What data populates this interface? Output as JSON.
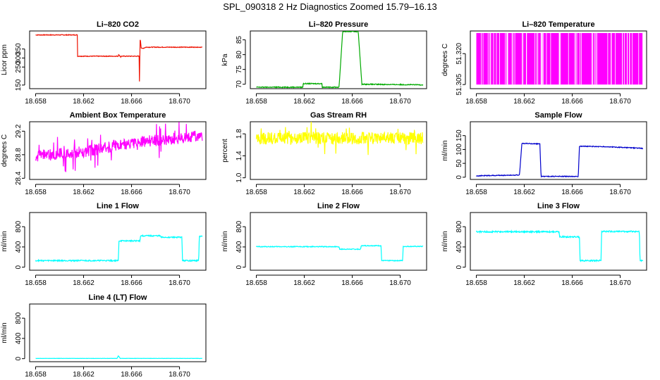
{
  "title": "SPL_090318  2 Hz Diagnostics Zoomed 15.79–16.13",
  "chart_data": [
    {
      "type": "line",
      "title": "Li–820 CO2",
      "ylabel": "Licor ppm",
      "color": "#ee1100",
      "xlim": [
        18.6575,
        18.6722
      ],
      "ylim": [
        130,
        450
      ],
      "xticks": [
        18.658,
        18.662,
        18.666,
        18.67
      ],
      "xtick_labels": [
        "18.658",
        "18.662",
        "18.666",
        "18.670"
      ],
      "yticks": [
        150,
        250,
        300,
        350
      ],
      "ytick_labels": [
        "150",
        "250",
        "300",
        "350"
      ],
      "series": [
        {
          "name": "CO2",
          "noise": 2,
          "x": [
            18.658,
            18.6615,
            18.6615,
            18.6649,
            18.6649,
            18.6651,
            18.6651,
            18.66665,
            18.66665,
            18.66672,
            18.6668,
            18.6669,
            18.6672,
            18.6719
          ],
          "y": [
            428,
            428,
            310,
            310,
            322,
            305,
            310,
            310,
            138,
            415,
            358,
            352,
            360,
            360
          ]
        }
      ]
    },
    {
      "type": "line",
      "title": "Li–820 Pressure",
      "ylabel": "kPa",
      "color": "#00aa00",
      "xlim": [
        18.6575,
        18.6722
      ],
      "ylim": [
        68.5,
        88
      ],
      "xticks": [
        18.658,
        18.662,
        18.666,
        18.67
      ],
      "xtick_labels": [
        "18.658",
        "18.662",
        "18.666",
        "18.670"
      ],
      "yticks": [
        70,
        75,
        80,
        85
      ],
      "ytick_labels": [
        "70",
        "75",
        "80",
        "85"
      ],
      "series": [
        {
          "name": "Pressure",
          "noise": 0.15,
          "x": [
            18.658,
            18.6619,
            18.6619,
            18.6635,
            18.6635,
            18.6649,
            18.6652,
            18.6665,
            18.6668,
            18.6719
          ],
          "y": [
            69.0,
            69.0,
            70.2,
            70.2,
            69.0,
            69.0,
            87.8,
            87.8,
            70.0,
            69.8
          ]
        }
      ]
    },
    {
      "type": "line",
      "title": "Li–820 Temperature",
      "ylabel": "degrees C",
      "color": "#ff00ff",
      "xlim": [
        18.6575,
        18.6722
      ],
      "ylim": [
        51.303,
        51.331
      ],
      "xticks": [
        18.658,
        18.662,
        18.666,
        18.67
      ],
      "xtick_labels": [
        "18.658",
        "18.662",
        "18.666",
        "18.670"
      ],
      "yticks": [
        51.305,
        51.32
      ],
      "ytick_labels": [
        "51.305",
        "51.320"
      ],
      "series": [
        {
          "name": "Li-820 Temperature",
          "x": [
            18.658,
            18.6719
          ],
          "y": [
            51.305,
            51.33
          ]
        }
      ]
    },
    {
      "type": "line",
      "title": "Ambient Box Temperature",
      "ylabel": "degrees C",
      "color": "#ff00ff",
      "xlim": [
        18.6575,
        18.6722
      ],
      "ylim": [
        28.38,
        29.36
      ],
      "xticks": [
        18.658,
        18.662,
        18.666,
        18.67
      ],
      "xtick_labels": [
        "18.658",
        "18.662",
        "18.666",
        "18.670"
      ],
      "yticks": [
        28.4,
        28.8,
        29.2
      ],
      "ytick_labels": [
        "28.4",
        "28.8",
        "29.2"
      ],
      "series": [
        {
          "name": "Ambient Box Temperature",
          "noise": 0.1,
          "x": [
            18.658,
            18.662,
            18.666,
            18.6719
          ],
          "y": [
            28.78,
            28.85,
            29.0,
            29.12
          ]
        }
      ]
    },
    {
      "type": "line",
      "title": "Gas Stream RH",
      "ylabel": "percent",
      "color": "#ffff00",
      "xlim": [
        18.6575,
        18.6722
      ],
      "ylim": [
        0.97,
        2.02
      ],
      "xticks": [
        18.658,
        18.662,
        18.666,
        18.67
      ],
      "xtick_labels": [
        "18.658",
        "18.662",
        "18.666",
        "18.670"
      ],
      "yticks": [
        1.0,
        1.4,
        1.8
      ],
      "ytick_labels": [
        "1.0",
        "1.4",
        "1.8"
      ],
      "series": [
        {
          "name": "Gas Stream RH",
          "noise": 0.11,
          "x": [
            18.658,
            18.6719
          ],
          "y": [
            1.72,
            1.72
          ]
        }
      ]
    },
    {
      "type": "line",
      "title": "Sample Flow",
      "ylabel": "ml/min",
      "color": "#0000cc",
      "xlim": [
        18.6575,
        18.6722
      ],
      "ylim": [
        -8,
        200
      ],
      "xticks": [
        18.658,
        18.662,
        18.666,
        18.67
      ],
      "xtick_labels": [
        "18.658",
        "18.662",
        "18.666",
        "18.670"
      ],
      "yticks": [
        0,
        50,
        100,
        150
      ],
      "ytick_labels": [
        "0",
        "50",
        "100",
        "150"
      ],
      "series": [
        {
          "name": "Sample Flow",
          "noise": 1.5,
          "x": [
            18.658,
            18.6616,
            18.6618,
            18.6633,
            18.6634,
            18.6665,
            18.6666,
            18.6687,
            18.6719
          ],
          "y": [
            5,
            8,
            122,
            120,
            3,
            3,
            112,
            110,
            104
          ]
        }
      ]
    },
    {
      "type": "line",
      "title": "Line 1 Flow",
      "ylabel": "ml/min",
      "color": "#00ffff",
      "xlim": [
        18.6575,
        18.6722
      ],
      "ylim": [
        -60,
        1080
      ],
      "xticks": [
        18.658,
        18.662,
        18.666,
        18.67
      ],
      "xtick_labels": [
        "18.658",
        "18.662",
        "18.666",
        "18.670"
      ],
      "yticks": [
        0,
        400,
        800
      ],
      "ytick_labels": [
        "0",
        "400",
        "800"
      ],
      "series": [
        {
          "name": "Line 1 Flow",
          "noise": 12,
          "x": [
            18.658,
            18.6649,
            18.66495,
            18.6667,
            18.66675,
            18.6684,
            18.66845,
            18.6702,
            18.67025,
            18.6716,
            18.67165,
            18.6719
          ],
          "y": [
            130,
            130,
            520,
            520,
            620,
            620,
            590,
            590,
            130,
            130,
            610,
            610
          ]
        }
      ]
    },
    {
      "type": "line",
      "title": "Line 2 Flow",
      "ylabel": "ml/min",
      "color": "#00ffff",
      "xlim": [
        18.6575,
        18.6722
      ],
      "ylim": [
        -60,
        1080
      ],
      "xticks": [
        18.658,
        18.662,
        18.666,
        18.67
      ],
      "xtick_labels": [
        "18.658",
        "18.662",
        "18.666",
        "18.670"
      ],
      "yticks": [
        0,
        400,
        800
      ],
      "ytick_labels": [
        "0",
        "400",
        "800"
      ],
      "series": [
        {
          "name": "Line 2 Flow",
          "noise": 8,
          "x": [
            18.658,
            18.6649,
            18.66495,
            18.6667,
            18.66675,
            18.6684,
            18.66845,
            18.6702,
            18.67025,
            18.6719
          ],
          "y": [
            405,
            405,
            355,
            355,
            425,
            425,
            130,
            130,
            410,
            410
          ]
        }
      ]
    },
    {
      "type": "line",
      "title": "Line 3 Flow",
      "ylabel": "ml/min",
      "color": "#00ffff",
      "xlim": [
        18.6575,
        18.6722
      ],
      "ylim": [
        -60,
        1080
      ],
      "xticks": [
        18.658,
        18.662,
        18.666,
        18.67
      ],
      "xtick_labels": [
        "18.658",
        "18.662",
        "18.666",
        "18.670"
      ],
      "yticks": [
        0,
        400,
        800
      ],
      "ytick_labels": [
        "0",
        "400",
        "800"
      ],
      "series": [
        {
          "name": "Line 3 Flow",
          "noise": 14,
          "x": [
            18.658,
            18.6649,
            18.66495,
            18.6666,
            18.66665,
            18.6684,
            18.66845,
            18.6716,
            18.67165,
            18.6719
          ],
          "y": [
            700,
            700,
            600,
            600,
            130,
            130,
            705,
            705,
            130,
            130
          ]
        }
      ]
    },
    {
      "type": "line",
      "title": "Line 4 (LT) Flow",
      "ylabel": "ml/min",
      "color": "#00ffff",
      "xlim": [
        18.6575,
        18.6722
      ],
      "ylim": [
        -60,
        1080
      ],
      "xticks": [
        18.658,
        18.662,
        18.666,
        18.67
      ],
      "xtick_labels": [
        "18.658",
        "18.662",
        "18.666",
        "18.670"
      ],
      "yticks": [
        0,
        400,
        800
      ],
      "ytick_labels": [
        "0",
        "400",
        "800"
      ],
      "series": [
        {
          "name": "Line 4 (LT) Flow",
          "noise": 2,
          "x": [
            18.658,
            18.6648,
            18.6649,
            18.66505,
            18.6652,
            18.6719
          ],
          "y": [
            5,
            5,
            60,
            5,
            5,
            5
          ]
        }
      ]
    }
  ]
}
